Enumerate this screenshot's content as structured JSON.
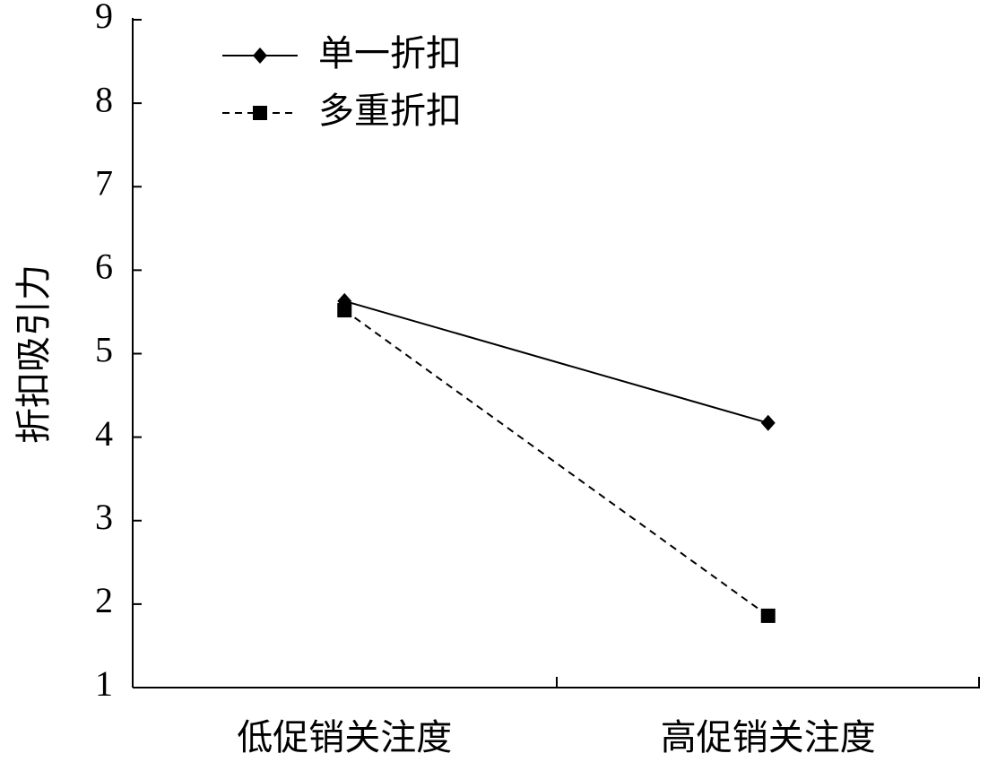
{
  "chart_data": {
    "type": "line",
    "y_label": "折扣吸引力",
    "categories": [
      "低促销关注度",
      "高促销关注度"
    ],
    "series": [
      {
        "name": "单一折扣",
        "color": "#000000",
        "dash": "solid",
        "marker": "diamond",
        "values": [
          5.63,
          4.17
        ]
      },
      {
        "name": "多重折扣",
        "color": "#000000",
        "dash": "dashed",
        "marker": "square",
        "values": [
          5.52,
          1.86
        ]
      }
    ],
    "ylim": [
      1,
      9
    ],
    "yticks": [
      1,
      2,
      3,
      4,
      5,
      6,
      7,
      8,
      9
    ],
    "legend": "upper-left",
    "grid": false
  }
}
